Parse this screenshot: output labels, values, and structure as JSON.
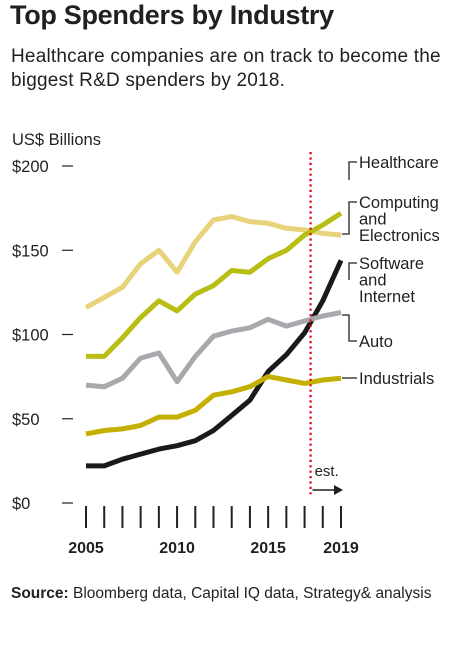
{
  "title": "Top Spenders by Industry",
  "subtitle": "Healthcare companies are on track to become the biggest R&D spenders by 2018.",
  "source": {
    "label": "Source:",
    "text": " Bloomberg data, Capital IQ data, Strategy& analysis"
  },
  "chart_data": {
    "type": "line",
    "ylabel": "US$ Billions",
    "ylim": [
      0,
      200
    ],
    "xlim": [
      2005,
      2019
    ],
    "y_ticks": [
      {
        "value": 0,
        "label": "$0"
      },
      {
        "value": 50,
        "label": "$50"
      },
      {
        "value": 100,
        "label": "$100"
      },
      {
        "value": 150,
        "label": "$150"
      },
      {
        "value": 200,
        "label": "$200"
      }
    ],
    "x_tick_labels": [
      {
        "value": 2005,
        "label": "2005"
      },
      {
        "value": 2010,
        "label": "2010"
      },
      {
        "value": 2015,
        "label": "2015"
      },
      {
        "value": 2019,
        "label": "2019"
      }
    ],
    "x": [
      2005,
      2006,
      2007,
      2008,
      2009,
      2010,
      2011,
      2012,
      2013,
      2014,
      2015,
      2016,
      2017,
      2018,
      2019
    ],
    "estimate_start": 2017,
    "estimate_label": "est.",
    "series": [
      {
        "name": "Healthcare",
        "color": "#e8d27a",
        "values": [
          116,
          122,
          128,
          142,
          150,
          137,
          155,
          168,
          170,
          167,
          166,
          163,
          162,
          160,
          159
        ]
      },
      {
        "name": "Computing and Electronics",
        "color": "#b8be14",
        "values": [
          87,
          87,
          98,
          110,
          120,
          114,
          124,
          129,
          138,
          137,
          145,
          150,
          159,
          165,
          172
        ]
      },
      {
        "name": "Software and Internet",
        "color": "#1a1a1a",
        "values": [
          22,
          22,
          26,
          29,
          32,
          34,
          37,
          43,
          52,
          61,
          78,
          88,
          101,
          120,
          144
        ]
      },
      {
        "name": "Auto",
        "color": "#a7a9ac",
        "values": [
          70,
          69,
          74,
          86,
          89,
          72,
          87,
          99,
          102,
          104,
          109,
          105,
          108,
          111,
          113
        ]
      },
      {
        "name": "Industrials",
        "color": "#c4b000",
        "values": [
          41,
          43,
          44,
          46,
          51,
          51,
          55,
          64,
          66,
          69,
          75,
          73,
          71,
          73,
          74
        ]
      }
    ],
    "labels": [
      {
        "series": "Healthcare",
        "lines": [
          "Healthcare"
        ]
      },
      {
        "series": "Computing and Electronics",
        "lines": [
          "Computing",
          "and",
          "Electronics"
        ]
      },
      {
        "series": "Software and Internet",
        "lines": [
          "Software",
          "and",
          "Internet"
        ]
      },
      {
        "series": "Auto",
        "lines": [
          "Auto"
        ]
      },
      {
        "series": "Industrials",
        "lines": [
          "Industrials"
        ]
      }
    ]
  }
}
